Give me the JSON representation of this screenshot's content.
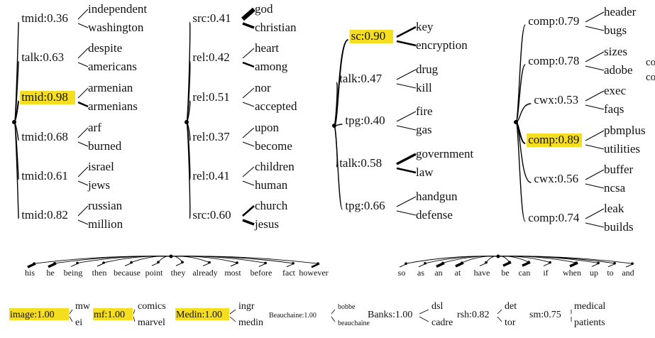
{
  "highlight_color": "#f5dd1f",
  "line_color": "#000000",
  "trees": [
    {
      "groups": [
        {
          "label": "tmid:0.36",
          "words": [
            "independent",
            "washington"
          ],
          "weights": [
            1,
            1
          ],
          "highlight": false
        },
        {
          "label": "talk:0.63",
          "words": [
            "despite",
            "americans"
          ],
          "weights": [
            1,
            1
          ],
          "highlight": false
        },
        {
          "label": "tmid:0.98",
          "words": [
            "armenian",
            "armenians"
          ],
          "weights": [
            1,
            2
          ],
          "highlight": true
        },
        {
          "label": "tmid:0.68",
          "words": [
            "arf",
            "burned"
          ],
          "weights": [
            1,
            1
          ],
          "highlight": false
        },
        {
          "label": "tmid:0.61",
          "words": [
            "israel",
            "jews"
          ],
          "weights": [
            1,
            1
          ],
          "highlight": false
        },
        {
          "label": "tmid:0.82",
          "words": [
            "russian",
            "million"
          ],
          "weights": [
            1,
            1
          ],
          "highlight": false
        }
      ]
    },
    {
      "groups": [
        {
          "label": "src:0.41",
          "words": [
            "god",
            "christian"
          ],
          "weights": [
            5,
            3
          ],
          "highlight": false
        },
        {
          "label": "rel:0.42",
          "words": [
            "heart",
            "among"
          ],
          "weights": [
            1,
            2
          ],
          "highlight": false
        },
        {
          "label": "rel:0.51",
          "words": [
            "nor",
            "accepted"
          ],
          "weights": [
            1,
            1
          ],
          "highlight": false
        },
        {
          "label": "rel:0.37",
          "words": [
            "upon",
            "become"
          ],
          "weights": [
            1,
            1
          ],
          "highlight": false
        },
        {
          "label": "rel:0.41",
          "words": [
            "children",
            "human"
          ],
          "weights": [
            1,
            1
          ],
          "highlight": false
        },
        {
          "label": "src:0.60",
          "words": [
            "church",
            "jesus"
          ],
          "weights": [
            2,
            3
          ],
          "highlight": false
        }
      ]
    },
    {
      "groups": [
        {
          "label": "sc:0.90",
          "words": [
            "key",
            "encryption"
          ],
          "weights": [
            2,
            2
          ],
          "highlight": true
        },
        {
          "label": "talk:0.47",
          "words": [
            "drug",
            "kill"
          ],
          "weights": [
            1,
            1
          ],
          "highlight": false
        },
        {
          "label": "tpg:0.40",
          "words": [
            "fire",
            "gas"
          ],
          "weights": [
            1,
            1
          ],
          "highlight": false
        },
        {
          "label": "talk:0.58",
          "words": [
            "government",
            "law"
          ],
          "weights": [
            3,
            2
          ],
          "highlight": false
        },
        {
          "label": "tpg:0.66",
          "words": [
            "handgun",
            "defense"
          ],
          "weights": [
            1,
            1
          ],
          "highlight": false
        }
      ]
    },
    {
      "groups": [
        {
          "label": "comp:0.79",
          "words": [
            "header",
            "bugs"
          ],
          "weights": [
            1,
            1
          ],
          "highlight": false
        },
        {
          "label": "comp:0.78",
          "words": [
            "sizes",
            "adobe"
          ],
          "weights": [
            1,
            1
          ],
          "highlight": false
        },
        {
          "label": "cwx:0.53",
          "words": [
            "exec",
            "faqs"
          ],
          "weights": [
            1,
            1
          ],
          "highlight": false
        },
        {
          "label": "comp:0.89",
          "words": [
            "pbmplus",
            "utilities"
          ],
          "weights": [
            1,
            1
          ],
          "highlight": true
        },
        {
          "label": "cwx:0.56",
          "words": [
            "buffer",
            "ncsa"
          ],
          "weights": [
            1,
            1
          ],
          "highlight": false
        },
        {
          "label": "comp:0.74",
          "words": [
            "leak",
            "builds"
          ],
          "weights": [
            1,
            1
          ],
          "highlight": false
        }
      ]
    }
  ],
  "cutoff_text": [
    "co",
    "co"
  ],
  "horizontal_trees": [
    {
      "words": [
        "his",
        "he",
        "being",
        "then",
        "because",
        "point",
        "they",
        "already",
        "most",
        "before",
        "fact",
        "however"
      ],
      "weights": [
        3,
        3,
        1,
        1,
        1,
        1,
        1,
        1,
        1,
        1,
        1,
        2
      ]
    },
    {
      "words": [
        "so",
        "as",
        "an",
        "at",
        "have",
        "be",
        "can",
        "if",
        "when",
        "up",
        "to",
        "and"
      ],
      "weights": [
        1,
        1,
        3,
        3,
        1,
        3,
        3,
        1,
        3,
        1,
        1,
        1
      ]
    }
  ],
  "bottom_groups": [
    {
      "label": "image:1.00",
      "words": [
        "mw",
        "ei"
      ],
      "highlight": true
    },
    {
      "label": "mf:1.00",
      "words": [
        "comics",
        "marvel"
      ],
      "highlight": true
    },
    {
      "label": "Medin:1.00",
      "words": [
        "ingr",
        "medin"
      ],
      "highlight": true
    },
    {
      "label": "Beauchaine:1.00",
      "words": [
        "bobbe",
        "beauchaine"
      ],
      "highlight": false
    },
    {
      "label": "Banks:1.00",
      "words": [
        "dsl",
        "cadre"
      ],
      "highlight": false
    },
    {
      "label": "rsh:0.82",
      "words": [
        "det",
        "tor"
      ],
      "highlight": false
    },
    {
      "label": "sm:0.75",
      "words": [
        "medical",
        "patients"
      ],
      "highlight": false
    }
  ]
}
